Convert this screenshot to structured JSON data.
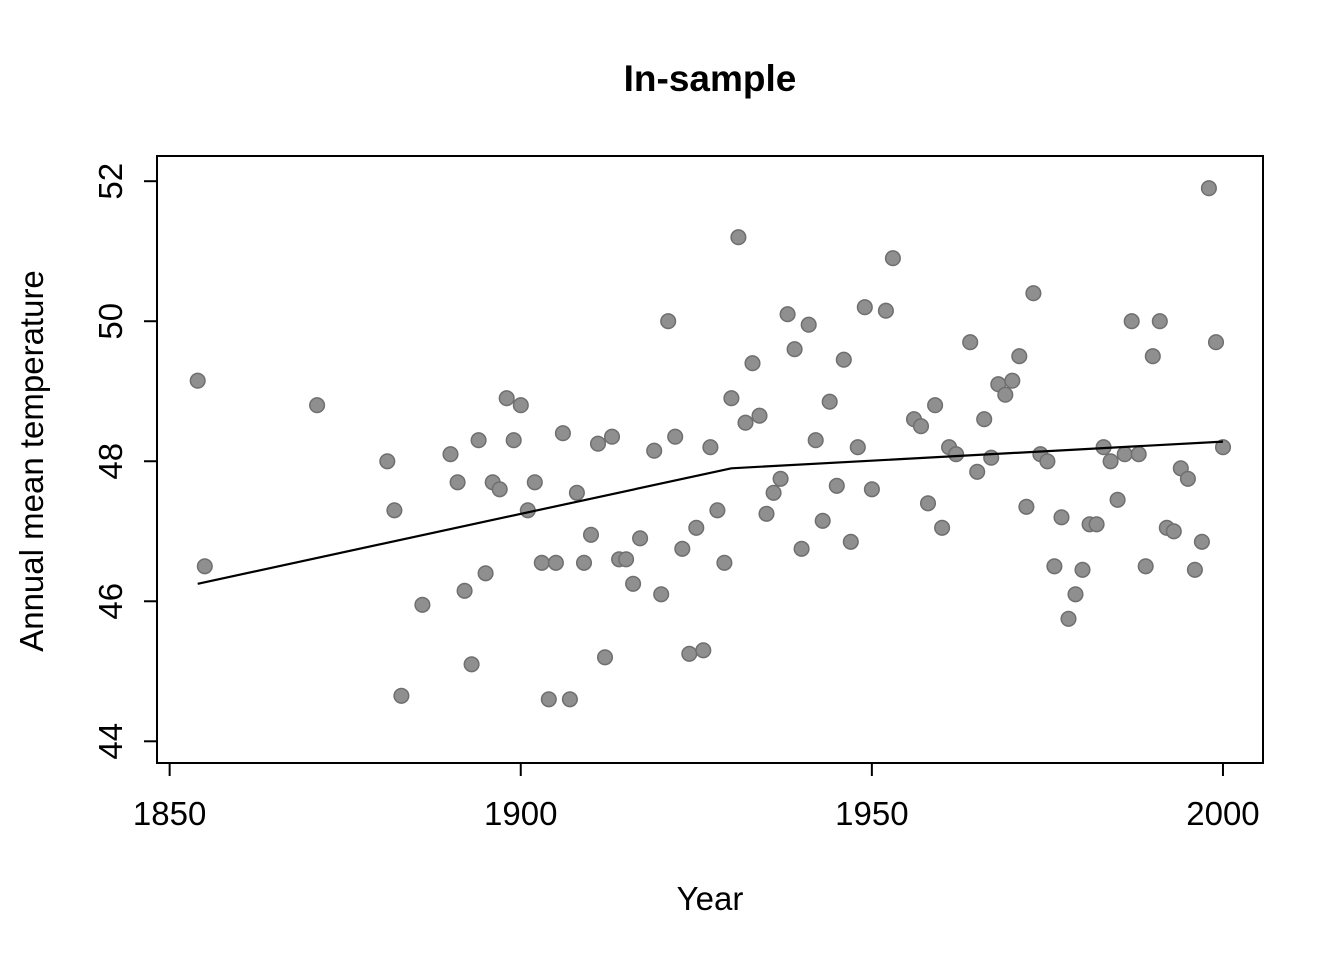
{
  "page": {
    "background": "#ffffff"
  },
  "chart_data": {
    "type": "scatter",
    "title": "In-sample",
    "xlabel": "Year",
    "ylabel": "Annual mean temperature",
    "x_ticks": [
      1850,
      1900,
      1950,
      2000
    ],
    "y_ticks": [
      44,
      46,
      48,
      50,
      52
    ],
    "xlim": [
      1848.2,
      2005.7
    ],
    "ylim": [
      43.69,
      52.36
    ],
    "grid": false,
    "legend_position": "none",
    "point_color": "#8f8f8f",
    "point_stroke_color": "#6f6f6f",
    "trend_line_color": "#000000",
    "axis_color": "#000000",
    "points": [
      [
        1854,
        49.15
      ],
      [
        1855,
        46.5
      ],
      [
        1871,
        48.8
      ],
      [
        1881,
        48.0
      ],
      [
        1882,
        47.3
      ],
      [
        1883,
        44.65
      ],
      [
        1886,
        45.95
      ],
      [
        1890,
        48.1
      ],
      [
        1891,
        47.7
      ],
      [
        1892,
        46.15
      ],
      [
        1893,
        45.1
      ],
      [
        1894,
        48.3
      ],
      [
        1895,
        46.4
      ],
      [
        1896,
        47.7
      ],
      [
        1897,
        47.6
      ],
      [
        1898,
        48.9
      ],
      [
        1899,
        48.3
      ],
      [
        1900,
        48.8
      ],
      [
        1901,
        47.3
      ],
      [
        1902,
        47.7
      ],
      [
        1903,
        46.55
      ],
      [
        1904,
        44.6
      ],
      [
        1905,
        46.55
      ],
      [
        1906,
        48.4
      ],
      [
        1907,
        44.6
      ],
      [
        1908,
        47.55
      ],
      [
        1909,
        46.55
      ],
      [
        1910,
        46.95
      ],
      [
        1911,
        48.25
      ],
      [
        1912,
        45.2
      ],
      [
        1913,
        48.35
      ],
      [
        1914,
        46.6
      ],
      [
        1915,
        46.6
      ],
      [
        1916,
        46.25
      ],
      [
        1917,
        46.9
      ],
      [
        1919,
        48.15
      ],
      [
        1920,
        46.1
      ],
      [
        1921,
        50.0
      ],
      [
        1922,
        48.35
      ],
      [
        1923,
        46.75
      ],
      [
        1924,
        45.25
      ],
      [
        1925,
        47.05
      ],
      [
        1926,
        45.3
      ],
      [
        1927,
        48.2
      ],
      [
        1928,
        47.3
      ],
      [
        1929,
        46.55
      ],
      [
        1930,
        48.9
      ],
      [
        1931,
        51.2
      ],
      [
        1932,
        48.55
      ],
      [
        1933,
        49.4
      ],
      [
        1934,
        48.65
      ],
      [
        1935,
        47.25
      ],
      [
        1936,
        47.55
      ],
      [
        1937,
        47.75
      ],
      [
        1938,
        50.1
      ],
      [
        1939,
        49.6
      ],
      [
        1940,
        46.75
      ],
      [
        1941,
        49.95
      ],
      [
        1942,
        48.3
      ],
      [
        1943,
        47.15
      ],
      [
        1944,
        48.85
      ],
      [
        1945,
        47.65
      ],
      [
        1946,
        49.45
      ],
      [
        1947,
        46.85
      ],
      [
        1948,
        48.2
      ],
      [
        1949,
        50.2
      ],
      [
        1950,
        47.6
      ],
      [
        1952,
        50.15
      ],
      [
        1953,
        50.9
      ],
      [
        1956,
        48.6
      ],
      [
        1957,
        48.5
      ],
      [
        1958,
        47.4
      ],
      [
        1959,
        48.8
      ],
      [
        1960,
        47.05
      ],
      [
        1961,
        48.2
      ],
      [
        1962,
        48.1
      ],
      [
        1964,
        49.7
      ],
      [
        1965,
        47.85
      ],
      [
        1966,
        48.6
      ],
      [
        1967,
        48.05
      ],
      [
        1968,
        49.1
      ],
      [
        1969,
        48.95
      ],
      [
        1970,
        49.15
      ],
      [
        1971,
        49.5
      ],
      [
        1972,
        47.35
      ],
      [
        1973,
        50.4
      ],
      [
        1974,
        48.1
      ],
      [
        1975,
        48.0
      ],
      [
        1976,
        46.5
      ],
      [
        1977,
        47.2
      ],
      [
        1978,
        45.75
      ],
      [
        1979,
        46.1
      ],
      [
        1980,
        46.45
      ],
      [
        1981,
        47.1
      ],
      [
        1982,
        47.1
      ],
      [
        1983,
        48.2
      ],
      [
        1984,
        48.0
      ],
      [
        1985,
        47.45
      ],
      [
        1986,
        48.1
      ],
      [
        1987,
        50.0
      ],
      [
        1988,
        48.1
      ],
      [
        1989,
        46.5
      ],
      [
        1990,
        49.5
      ],
      [
        1991,
        50.0
      ],
      [
        1992,
        47.05
      ],
      [
        1993,
        47.0
      ],
      [
        1994,
        47.9
      ],
      [
        1995,
        47.75
      ],
      [
        1996,
        46.45
      ],
      [
        1997,
        46.85
      ],
      [
        1998,
        51.9
      ],
      [
        1999,
        49.7
      ],
      [
        2000,
        48.2
      ]
    ],
    "trend_line": [
      [
        1854,
        46.25
      ],
      [
        1930,
        47.9
      ],
      [
        2000,
        48.28
      ]
    ]
  }
}
